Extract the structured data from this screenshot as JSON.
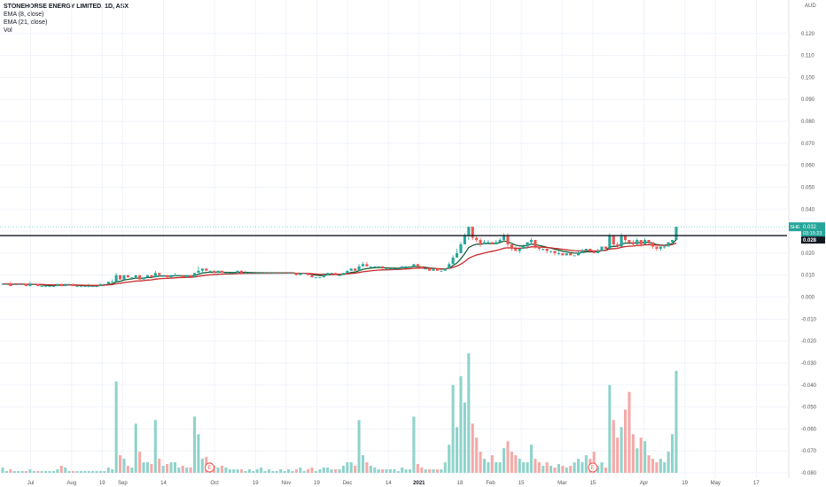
{
  "legend": {
    "symbol": "STONEHORSE ENERGY LIMITED, 1D, ASX",
    "ema8": "EMA (8, close)",
    "ema21": "EMA (21, close)",
    "vol": "Vol"
  },
  "currency": "AUD",
  "price_badges": {
    "ticker": "SHE",
    "last": "0.032",
    "countdown": "03:15:23",
    "line": "0.028"
  },
  "colors": {
    "up": "#26a69a",
    "down": "#ef5350",
    "up_volume": "#8fd3cb",
    "down_volume": "#f5a9a7",
    "ema8": "#1b5e3a",
    "ema21": "#c62828",
    "hline": "#131722",
    "grid": "#f0f3fa"
  },
  "chart_data": {
    "type": "candlestick",
    "title": "STONEHORSE ENERGY LIMITED, 1D, ASX",
    "y_axis": {
      "unit": "AUD",
      "min": -0.08,
      "max": 0.13,
      "ticks": [
        "0.120",
        "0.110",
        "0.100",
        "0.090",
        "0.080",
        "0.070",
        "0.060",
        "0.050",
        "0.040",
        "0.030",
        "0.020",
        "0.010",
        "0.000",
        "-0.010",
        "-0.020",
        "-0.030",
        "-0.040",
        "-0.050",
        "-0.060",
        "-0.070",
        "-0.080"
      ],
      "tick_values": [
        0.12,
        0.11,
        0.1,
        0.09,
        0.08,
        0.07,
        0.06,
        0.05,
        0.04,
        0.03,
        0.02,
        0.01,
        0,
        -0.01,
        -0.02,
        -0.03,
        -0.04,
        -0.05,
        -0.06,
        -0.07,
        -0.08
      ]
    },
    "x_axis": {
      "ticks": [
        {
          "label": "Jul",
          "week": 3,
          "bold": false
        },
        {
          "label": "Aug",
          "week": 7,
          "bold": false
        },
        {
          "label": "19",
          "week": 10,
          "bold": false
        },
        {
          "label": "Sep",
          "week": 12,
          "bold": false
        },
        {
          "label": "14",
          "week": 16,
          "bold": false
        },
        {
          "label": "Oct",
          "week": 21,
          "bold": false
        },
        {
          "label": "19",
          "week": 25,
          "bold": false
        },
        {
          "label": "Nov",
          "week": 28,
          "bold": false
        },
        {
          "label": "19",
          "week": 31,
          "bold": false
        },
        {
          "label": "Dec",
          "week": 34,
          "bold": false
        },
        {
          "label": "14",
          "week": 38,
          "bold": false
        },
        {
          "label": "2021",
          "week": 41,
          "bold": true
        },
        {
          "label": "18",
          "week": 45,
          "bold": false
        },
        {
          "label": "Feb",
          "week": 48,
          "bold": false
        },
        {
          "label": "15",
          "week": 51,
          "bold": false
        },
        {
          "label": "Mar",
          "week": 55,
          "bold": false
        },
        {
          "label": "15",
          "week": 58,
          "bold": false
        },
        {
          "label": "Apr",
          "week": 63,
          "bold": false
        },
        {
          "label": "19",
          "week": 67,
          "bold": false
        },
        {
          "label": "May",
          "week": 70,
          "bold": false
        },
        {
          "label": "17",
          "week": 74,
          "bold": false
        }
      ],
      "total_weeks": 77
    },
    "horizontal_line": 0.028,
    "last_price": 0.032,
    "event_markers": [
      {
        "label": "E",
        "week": 20.5
      },
      {
        "label": "E",
        "week": 58
      }
    ],
    "candles": [
      [
        0.006,
        0.006,
        0.006,
        0.006,
        3
      ],
      [
        0.006,
        0.006,
        0.006,
        0.006,
        1
      ],
      [
        0.006,
        0.005,
        0.007,
        0.005,
        2
      ],
      [
        0.006,
        0.006,
        0.006,
        0.006,
        1
      ],
      [
        0.006,
        0.006,
        0.006,
        0.006,
        1
      ],
      [
        0.006,
        0.006,
        0.006,
        0.006,
        1
      ],
      [
        0.006,
        0.005,
        0.006,
        0.005,
        1
      ],
      [
        0.005,
        0.006,
        0.007,
        0.005,
        2
      ],
      [
        0.006,
        0.006,
        0.006,
        0.006,
        1
      ],
      [
        0.006,
        0.005,
        0.006,
        0.005,
        1
      ],
      [
        0.005,
        0.005,
        0.005,
        0.005,
        1
      ],
      [
        0.005,
        0.005,
        0.005,
        0.005,
        1
      ],
      [
        0.005,
        0.005,
        0.005,
        0.005,
        1
      ],
      [
        0.005,
        0.005,
        0.005,
        0.005,
        1
      ],
      [
        0.005,
        0.006,
        0.006,
        0.005,
        2
      ],
      [
        0.006,
        0.005,
        0.006,
        0.005,
        4
      ],
      [
        0.005,
        0.006,
        0.006,
        0.005,
        3
      ],
      [
        0.006,
        0.006,
        0.006,
        0.006,
        1
      ],
      [
        0.006,
        0.005,
        0.006,
        0.005,
        1
      ],
      [
        0.005,
        0.005,
        0.005,
        0.005,
        1
      ],
      [
        0.005,
        0.005,
        0.005,
        0.005,
        1
      ],
      [
        0.005,
        0.005,
        0.005,
        0.005,
        1
      ],
      [
        0.005,
        0.005,
        0.006,
        0.005,
        1
      ],
      [
        0.005,
        0.005,
        0.005,
        0.005,
        1
      ],
      [
        0.005,
        0.005,
        0.005,
        0.005,
        1
      ],
      [
        0.005,
        0.006,
        0.006,
        0.005,
        1
      ],
      [
        0.006,
        0.006,
        0.006,
        0.006,
        1
      ],
      [
        0.006,
        0.007,
        0.007,
        0.006,
        3
      ],
      [
        0.007,
        0.007,
        0.008,
        0.007,
        2
      ],
      [
        0.007,
        0.01,
        0.011,
        0.007,
        52
      ],
      [
        0.01,
        0.008,
        0.01,
        0.008,
        10
      ],
      [
        0.008,
        0.01,
        0.01,
        0.008,
        8
      ],
      [
        0.01,
        0.009,
        0.01,
        0.009,
        4
      ],
      [
        0.009,
        0.009,
        0.009,
        0.009,
        3
      ],
      [
        0.009,
        0.01,
        0.01,
        0.009,
        28
      ],
      [
        0.01,
        0.008,
        0.01,
        0.008,
        12
      ],
      [
        0.008,
        0.009,
        0.009,
        0.008,
        6
      ],
      [
        0.009,
        0.01,
        0.01,
        0.009,
        6
      ],
      [
        0.01,
        0.009,
        0.01,
        0.009,
        5
      ],
      [
        0.009,
        0.011,
        0.012,
        0.009,
        30
      ],
      [
        0.011,
        0.01,
        0.011,
        0.01,
        8
      ],
      [
        0.01,
        0.01,
        0.01,
        0.01,
        4
      ],
      [
        0.01,
        0.009,
        0.01,
        0.009,
        5
      ],
      [
        0.009,
        0.01,
        0.01,
        0.009,
        6
      ],
      [
        0.01,
        0.01,
        0.011,
        0.01,
        6
      ],
      [
        0.01,
        0.01,
        0.01,
        0.01,
        3
      ],
      [
        0.01,
        0.009,
        0.01,
        0.009,
        4
      ],
      [
        0.009,
        0.01,
        0.01,
        0.009,
        3
      ],
      [
        0.01,
        0.009,
        0.01,
        0.009,
        3
      ],
      [
        0.009,
        0.011,
        0.011,
        0.009,
        32
      ],
      [
        0.011,
        0.012,
        0.014,
        0.011,
        22
      ],
      [
        0.012,
        0.013,
        0.013,
        0.011,
        8
      ],
      [
        0.013,
        0.012,
        0.013,
        0.012,
        9
      ],
      [
        0.012,
        0.012,
        0.012,
        0.011,
        6
      ],
      [
        0.012,
        0.011,
        0.012,
        0.011,
        4
      ],
      [
        0.011,
        0.012,
        0.012,
        0.011,
        3
      ],
      [
        0.012,
        0.011,
        0.012,
        0.011,
        4
      ],
      [
        0.011,
        0.011,
        0.011,
        0.011,
        3
      ],
      [
        0.011,
        0.011,
        0.011,
        0.011,
        2
      ],
      [
        0.011,
        0.011,
        0.011,
        0.011,
        2
      ],
      [
        0.011,
        0.012,
        0.012,
        0.011,
        2
      ],
      [
        0.012,
        0.011,
        0.012,
        0.011,
        2
      ],
      [
        0.011,
        0.011,
        0.012,
        0.011,
        1
      ],
      [
        0.011,
        0.011,
        0.011,
        0.011,
        2
      ],
      [
        0.011,
        0.011,
        0.011,
        0.011,
        1
      ],
      [
        0.011,
        0.011,
        0.011,
        0.011,
        2
      ],
      [
        0.011,
        0.011,
        0.011,
        0.011,
        3
      ],
      [
        0.011,
        0.011,
        0.011,
        0.011,
        1
      ],
      [
        0.011,
        0.011,
        0.011,
        0.011,
        2
      ],
      [
        0.011,
        0.011,
        0.011,
        0.011,
        1
      ],
      [
        0.011,
        0.011,
        0.011,
        0.011,
        1
      ],
      [
        0.011,
        0.011,
        0.011,
        0.011,
        2
      ],
      [
        0.011,
        0.011,
        0.011,
        0.011,
        1
      ],
      [
        0.011,
        0.011,
        0.011,
        0.011,
        2
      ],
      [
        0.011,
        0.011,
        0.011,
        0.011,
        1
      ],
      [
        0.011,
        0.01,
        0.011,
        0.01,
        2
      ],
      [
        0.01,
        0.011,
        0.011,
        0.01,
        3
      ],
      [
        0.011,
        0.011,
        0.011,
        0.011,
        1
      ],
      [
        0.011,
        0.01,
        0.011,
        0.01,
        2
      ],
      [
        0.01,
        0.009,
        0.01,
        0.009,
        3
      ],
      [
        0.009,
        0.009,
        0.009,
        0.009,
        1
      ],
      [
        0.009,
        0.009,
        0.009,
        0.009,
        2
      ],
      [
        0.009,
        0.01,
        0.011,
        0.009,
        3
      ],
      [
        0.01,
        0.011,
        0.011,
        0.01,
        3
      ],
      [
        0.011,
        0.011,
        0.011,
        0.011,
        2
      ],
      [
        0.011,
        0.01,
        0.011,
        0.01,
        2
      ],
      [
        0.01,
        0.01,
        0.01,
        0.01,
        2
      ],
      [
        0.01,
        0.011,
        0.011,
        0.01,
        4
      ],
      [
        0.011,
        0.012,
        0.012,
        0.011,
        6
      ],
      [
        0.012,
        0.013,
        0.013,
        0.012,
        6
      ],
      [
        0.013,
        0.012,
        0.013,
        0.012,
        4
      ],
      [
        0.012,
        0.014,
        0.015,
        0.012,
        30
      ],
      [
        0.014,
        0.015,
        0.016,
        0.014,
        10
      ],
      [
        0.015,
        0.014,
        0.016,
        0.014,
        6
      ],
      [
        0.014,
        0.014,
        0.014,
        0.014,
        4
      ],
      [
        0.014,
        0.014,
        0.014,
        0.014,
        3
      ],
      [
        0.014,
        0.014,
        0.014,
        0.014,
        2
      ],
      [
        0.014,
        0.013,
        0.014,
        0.013,
        2
      ],
      [
        0.013,
        0.013,
        0.013,
        0.013,
        2
      ],
      [
        0.013,
        0.013,
        0.013,
        0.013,
        2
      ],
      [
        0.013,
        0.013,
        0.013,
        0.013,
        2
      ],
      [
        0.013,
        0.013,
        0.013,
        0.013,
        1
      ],
      [
        0.013,
        0.014,
        0.014,
        0.013,
        3
      ],
      [
        0.014,
        0.014,
        0.014,
        0.014,
        2
      ],
      [
        0.014,
        0.014,
        0.014,
        0.014,
        2
      ],
      [
        0.014,
        0.015,
        0.015,
        0.014,
        32
      ],
      [
        0.015,
        0.014,
        0.015,
        0.014,
        5
      ],
      [
        0.014,
        0.013,
        0.014,
        0.013,
        3
      ],
      [
        0.013,
        0.013,
        0.013,
        0.013,
        2
      ],
      [
        0.013,
        0.012,
        0.013,
        0.012,
        2
      ],
      [
        0.012,
        0.013,
        0.013,
        0.012,
        2
      ],
      [
        0.013,
        0.012,
        0.013,
        0.012,
        2
      ],
      [
        0.012,
        0.012,
        0.012,
        0.012,
        2
      ],
      [
        0.012,
        0.013,
        0.013,
        0.012,
        6
      ],
      [
        0.013,
        0.015,
        0.016,
        0.013,
        16
      ],
      [
        0.015,
        0.018,
        0.019,
        0.015,
        50
      ],
      [
        0.018,
        0.02,
        0.022,
        0.018,
        26
      ],
      [
        0.02,
        0.024,
        0.025,
        0.02,
        55
      ],
      [
        0.024,
        0.028,
        0.029,
        0.024,
        40
      ],
      [
        0.028,
        0.032,
        0.032,
        0.026,
        68
      ],
      [
        0.032,
        0.027,
        0.032,
        0.026,
        28
      ],
      [
        0.027,
        0.026,
        0.028,
        0.025,
        20
      ],
      [
        0.026,
        0.024,
        0.027,
        0.023,
        12
      ],
      [
        0.024,
        0.025,
        0.026,
        0.024,
        8
      ],
      [
        0.025,
        0.025,
        0.026,
        0.024,
        6
      ],
      [
        0.025,
        0.024,
        0.025,
        0.024,
        10
      ],
      [
        0.024,
        0.025,
        0.026,
        0.024,
        6
      ],
      [
        0.025,
        0.026,
        0.027,
        0.025,
        6
      ],
      [
        0.026,
        0.028,
        0.029,
        0.025,
        14
      ],
      [
        0.028,
        0.024,
        0.029,
        0.023,
        18
      ],
      [
        0.024,
        0.022,
        0.024,
        0.021,
        12
      ],
      [
        0.022,
        0.021,
        0.023,
        0.021,
        10
      ],
      [
        0.021,
        0.022,
        0.022,
        0.02,
        8
      ],
      [
        0.022,
        0.023,
        0.024,
        0.022,
        6
      ],
      [
        0.023,
        0.025,
        0.025,
        0.022,
        6
      ],
      [
        0.025,
        0.026,
        0.027,
        0.024,
        16
      ],
      [
        0.026,
        0.023,
        0.026,
        0.022,
        8
      ],
      [
        0.023,
        0.022,
        0.023,
        0.021,
        6
      ],
      [
        0.022,
        0.022,
        0.022,
        0.021,
        4
      ],
      [
        0.022,
        0.021,
        0.022,
        0.02,
        6
      ],
      [
        0.021,
        0.021,
        0.021,
        0.02,
        4
      ],
      [
        0.021,
        0.02,
        0.021,
        0.019,
        3
      ],
      [
        0.02,
        0.02,
        0.021,
        0.019,
        5
      ],
      [
        0.02,
        0.019,
        0.02,
        0.019,
        4
      ],
      [
        0.019,
        0.02,
        0.02,
        0.019,
        3
      ],
      [
        0.02,
        0.019,
        0.02,
        0.019,
        4
      ],
      [
        0.019,
        0.019,
        0.019,
        0.019,
        6
      ],
      [
        0.019,
        0.02,
        0.021,
        0.019,
        8
      ],
      [
        0.02,
        0.021,
        0.022,
        0.02,
        6
      ],
      [
        0.021,
        0.022,
        0.022,
        0.021,
        10
      ],
      [
        0.022,
        0.021,
        0.022,
        0.02,
        8
      ],
      [
        0.021,
        0.02,
        0.021,
        0.02,
        12
      ],
      [
        0.02,
        0.021,
        0.022,
        0.02,
        4
      ],
      [
        0.021,
        0.023,
        0.023,
        0.021,
        6
      ],
      [
        0.023,
        0.022,
        0.023,
        0.022,
        3
      ],
      [
        0.022,
        0.028,
        0.029,
        0.022,
        50
      ],
      [
        0.028,
        0.024,
        0.028,
        0.023,
        30
      ],
      [
        0.024,
        0.023,
        0.025,
        0.022,
        20
      ],
      [
        0.023,
        0.028,
        0.029,
        0.023,
        26
      ],
      [
        0.028,
        0.026,
        0.028,
        0.025,
        36
      ],
      [
        0.026,
        0.025,
        0.026,
        0.024,
        46
      ],
      [
        0.025,
        0.024,
        0.026,
        0.023,
        22
      ],
      [
        0.024,
        0.026,
        0.027,
        0.024,
        14
      ],
      [
        0.026,
        0.024,
        0.026,
        0.023,
        20
      ],
      [
        0.024,
        0.026,
        0.027,
        0.024,
        18
      ],
      [
        0.026,
        0.025,
        0.026,
        0.024,
        10
      ],
      [
        0.025,
        0.023,
        0.025,
        0.022,
        8
      ],
      [
        0.023,
        0.022,
        0.023,
        0.021,
        6
      ],
      [
        0.022,
        0.023,
        0.023,
        0.021,
        8
      ],
      [
        0.023,
        0.023,
        0.024,
        0.022,
        6
      ],
      [
        0.023,
        0.025,
        0.025,
        0.023,
        12
      ],
      [
        0.025,
        0.026,
        0.026,
        0.024,
        22
      ],
      [
        0.026,
        0.032,
        0.032,
        0.026,
        58
      ]
    ]
  }
}
